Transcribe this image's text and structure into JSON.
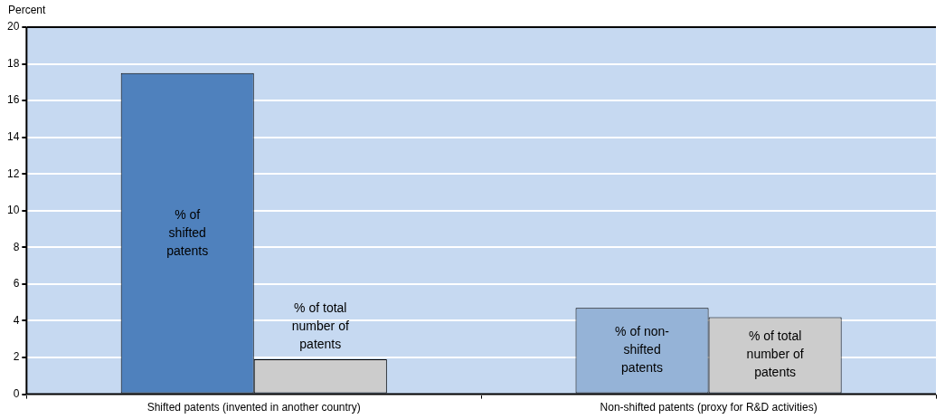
{
  "chart_data": {
    "type": "bar",
    "ylabel": "Percent",
    "categories": [
      "Shifted patents (invented in another country)",
      "Non-shifted patents (proxy for R&D activities)"
    ],
    "series": [
      {
        "colors": [
          "#4f81bd",
          "#95b3d7"
        ],
        "values": [
          17.5,
          4.7
        ]
      },
      {
        "color": "#cccccc",
        "values": [
          1.9,
          4.2
        ]
      }
    ],
    "ylim": [
      0,
      20
    ],
    "yticks": [
      0,
      2,
      4,
      6,
      8,
      10,
      12,
      14,
      16,
      18,
      20
    ],
    "grid": "y",
    "legend": false,
    "annotations": [
      "% of shifted patents",
      "% of total number of patents",
      "% of non-shifted patents",
      "% of total number of patents"
    ]
  }
}
